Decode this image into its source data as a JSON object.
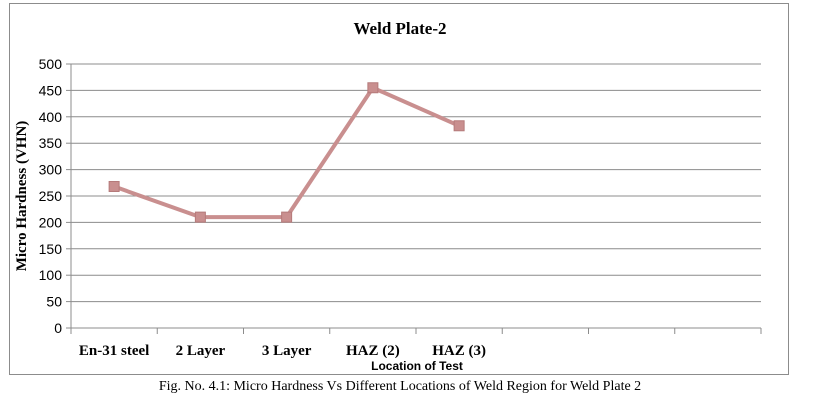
{
  "chart_data": {
    "type": "line",
    "title": "Weld Plate-2",
    "xlabel": "Location of Test",
    "ylabel": "Micro Hardness (VHN)",
    "categories": [
      "En-31 steel",
      "2 Layer",
      "3 Layer",
      "HAZ (2)",
      "HAZ (3)",
      "",
      "",
      ""
    ],
    "series": [
      {
        "values": [
          268,
          210,
          210,
          455,
          383,
          null,
          null,
          null
        ]
      }
    ],
    "ylim": [
      0,
      500
    ],
    "yticks": [
      0,
      50,
      100,
      150,
      200,
      250,
      300,
      350,
      400,
      450,
      500
    ],
    "grid": true,
    "legend": "none",
    "line_color": "#c98f8f",
    "marker": "square"
  },
  "caption": "Fig. No. 4.1: Micro Hardness Vs Different Locations of Weld Region for Weld Plate 2"
}
